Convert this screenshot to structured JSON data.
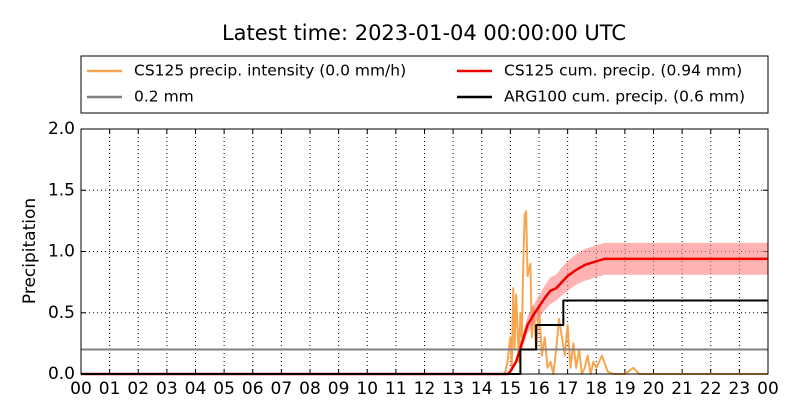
{
  "chart_data": {
    "type": "line",
    "title": "Latest time: 2023-01-04 00:00:00 UTC",
    "ylabel": "Precipitation",
    "xlim": [
      0,
      24
    ],
    "xticks": [
      {
        "value": 0,
        "label": "00"
      },
      {
        "value": 1,
        "label": "01"
      },
      {
        "value": 2,
        "label": "02"
      },
      {
        "value": 3,
        "label": "03"
      },
      {
        "value": 4,
        "label": "04"
      },
      {
        "value": 5,
        "label": "05"
      },
      {
        "value": 6,
        "label": "06"
      },
      {
        "value": 7,
        "label": "07"
      },
      {
        "value": 8,
        "label": "08"
      },
      {
        "value": 9,
        "label": "09"
      },
      {
        "value": 10,
        "label": "10"
      },
      {
        "value": 11,
        "label": "11"
      },
      {
        "value": 12,
        "label": "12"
      },
      {
        "value": 13,
        "label": "13"
      },
      {
        "value": 14,
        "label": "14"
      },
      {
        "value": 15,
        "label": "15"
      },
      {
        "value": 16,
        "label": "16"
      },
      {
        "value": 17,
        "label": "17"
      },
      {
        "value": 18,
        "label": "18"
      },
      {
        "value": 19,
        "label": "19"
      },
      {
        "value": 20,
        "label": "20"
      },
      {
        "value": 21,
        "label": "21"
      },
      {
        "value": 22,
        "label": "22"
      },
      {
        "value": 23,
        "label": "23"
      },
      {
        "value": 24,
        "label": "00"
      }
    ],
    "ylim": [
      0,
      2
    ],
    "yticks": [
      {
        "value": 0,
        "label": "0.0"
      },
      {
        "value": 0.5,
        "label": "0.5"
      },
      {
        "value": 1,
        "label": "1.0"
      },
      {
        "value": 1.5,
        "label": "1.5"
      },
      {
        "value": 2,
        "label": "2.0"
      }
    ],
    "grid": true,
    "legend": "top",
    "series": [
      {
        "name": "CS125 precip. intensity (0.0 mm/h)",
        "color": "#f7a64f",
        "x": [
          0,
          14.8,
          14.9,
          15.0,
          15.05,
          15.1,
          15.15,
          15.2,
          15.3,
          15.35,
          15.4,
          15.45,
          15.5,
          15.55,
          15.6,
          15.7,
          15.75,
          15.8,
          15.9,
          16.0,
          16.1,
          16.2,
          16.3,
          16.4,
          16.5,
          16.6,
          16.7,
          16.8,
          16.9,
          17.0,
          17.1,
          17.2,
          17.3,
          17.4,
          17.5,
          17.6,
          17.7,
          17.8,
          17.9,
          18.0,
          18.2,
          18.4,
          18.6,
          19.0,
          19.3,
          19.5,
          24
        ],
        "values": [
          0,
          0,
          0.1,
          0.3,
          0.05,
          0.7,
          0.2,
          0.65,
          0.1,
          0.5,
          0.3,
          0.9,
          1.3,
          1.33,
          0.8,
          0.9,
          0.3,
          0.55,
          0.2,
          0.55,
          0.15,
          0.3,
          0.05,
          0.1,
          0,
          0.2,
          0.45,
          0.3,
          0.15,
          0.4,
          0.05,
          0.25,
          0.05,
          0.2,
          0,
          0.05,
          0.15,
          0,
          0.1,
          0.05,
          0.15,
          0.02,
          0,
          0,
          0.05,
          0,
          0
        ]
      },
      {
        "name": "CS125 cum. precip. (0.94 mm)",
        "color": "#ee0000",
        "band_color": "#ff8080",
        "x": [
          0,
          14.9,
          15.0,
          15.2,
          15.4,
          15.6,
          15.8,
          16.0,
          16.2,
          16.4,
          16.6,
          16.8,
          17.0,
          17.3,
          17.6,
          18.0,
          18.3,
          24
        ],
        "values": [
          0,
          0,
          0.02,
          0.1,
          0.25,
          0.4,
          0.48,
          0.55,
          0.62,
          0.68,
          0.7,
          0.75,
          0.8,
          0.85,
          0.89,
          0.92,
          0.94,
          0.94
        ],
        "lower": [
          0,
          0,
          0.01,
          0.08,
          0.2,
          0.33,
          0.4,
          0.46,
          0.52,
          0.57,
          0.6,
          0.64,
          0.68,
          0.73,
          0.76,
          0.79,
          0.81,
          0.81
        ],
        "upper": [
          0,
          0,
          0.03,
          0.12,
          0.3,
          0.47,
          0.56,
          0.64,
          0.72,
          0.79,
          0.81,
          0.87,
          0.92,
          0.98,
          1.02,
          1.05,
          1.07,
          1.07
        ]
      },
      {
        "name": "0.2 mm",
        "color": "#808080",
        "x": [
          0,
          24
        ],
        "values": [
          0.2,
          0.2
        ]
      },
      {
        "name": "ARG100 cum. precip. (0.6 mm)",
        "color": "#000000",
        "x": [
          0,
          15.35,
          15.35,
          15.9,
          15.9,
          16.85,
          16.85,
          24
        ],
        "values": [
          0,
          0,
          0.2,
          0.2,
          0.4,
          0.4,
          0.6,
          0.6
        ]
      }
    ]
  }
}
